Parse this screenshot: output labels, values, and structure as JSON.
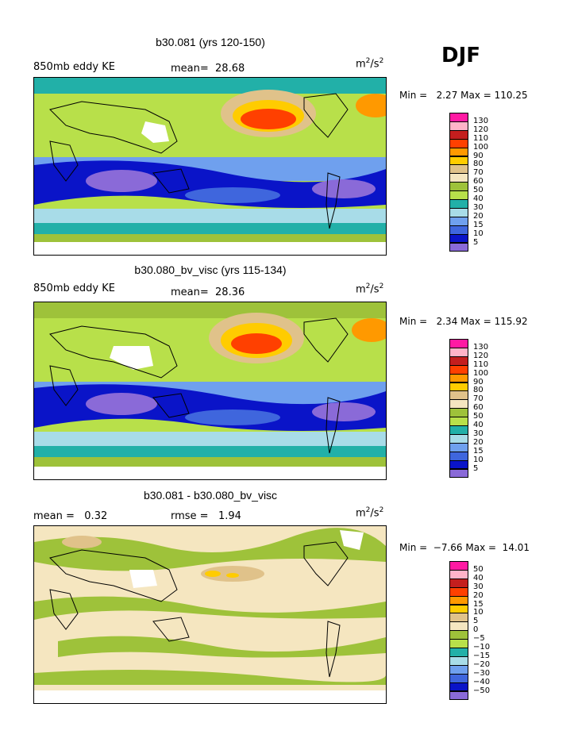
{
  "season": "DJF",
  "panels": [
    {
      "title": "b30.081 (yrs 120-150)",
      "left_label": "850mb eddy KE",
      "center_label": "mean=  28.68",
      "unit": "m",
      "unit_sup": "2",
      "unit_tail": "/s",
      "unit_sup2": "2",
      "minmax": "Min =   2.27 Max = 110.25",
      "levels": [
        "130",
        "120",
        "110",
        "100",
        "90",
        "80",
        "70",
        "60",
        "50",
        "40",
        "30",
        "20",
        "15",
        "10",
        "5"
      ],
      "colors": [
        "#ff1aa3",
        "#ffb3c8",
        "#c41e1e",
        "#ff4000",
        "#ff9900",
        "#ffcc00",
        "#e0c28a",
        "#f5e6c0",
        "#9ec23a",
        "#b8e04a",
        "#22b0a8",
        "#a8dce8",
        "#6fa0ee",
        "#3f66dd",
        "#0a14c8",
        "#8a6ad8"
      ]
    },
    {
      "title": "b30.080_bv_visc (yrs 115-134)",
      "left_label": "850mb eddy KE",
      "center_label": "mean=  28.36",
      "unit": "m",
      "unit_sup": "2",
      "unit_tail": "/s",
      "unit_sup2": "2",
      "minmax": "Min =   2.34 Max = 115.92",
      "levels": [
        "130",
        "120",
        "110",
        "100",
        "90",
        "80",
        "70",
        "60",
        "50",
        "40",
        "30",
        "20",
        "15",
        "10",
        "5"
      ],
      "colors": [
        "#ff1aa3",
        "#ffb3c8",
        "#c41e1e",
        "#ff4000",
        "#ff9900",
        "#ffcc00",
        "#e0c28a",
        "#f5e6c0",
        "#9ec23a",
        "#b8e04a",
        "#22b0a8",
        "#a8dce8",
        "#6fa0ee",
        "#3f66dd",
        "#0a14c8",
        "#8a6ad8"
      ]
    },
    {
      "title": "b30.081 - b30.080_bv_visc",
      "left_label": "mean =   0.32",
      "center_label": "rmse =   1.94",
      "unit": "m",
      "unit_sup": "2",
      "unit_tail": "/s",
      "unit_sup2": "2",
      "minmax": "Min =  −7.66 Max =  14.01",
      "levels": [
        "50",
        "40",
        "30",
        "20",
        "15",
        "10",
        "5",
        "0",
        "−5",
        "−10",
        "−15",
        "−20",
        "−30",
        "−40",
        "−50"
      ],
      "colors": [
        "#ff1aa3",
        "#ffb3c8",
        "#c41e1e",
        "#ff4000",
        "#ff9900",
        "#ffcc00",
        "#e0c28a",
        "#f5e6c0",
        "#9ec23a",
        "#b8e04a",
        "#22b0a8",
        "#a8dce8",
        "#6fa0ee",
        "#3f66dd",
        "#0a14c8",
        "#8a6ad8"
      ]
    }
  ]
}
